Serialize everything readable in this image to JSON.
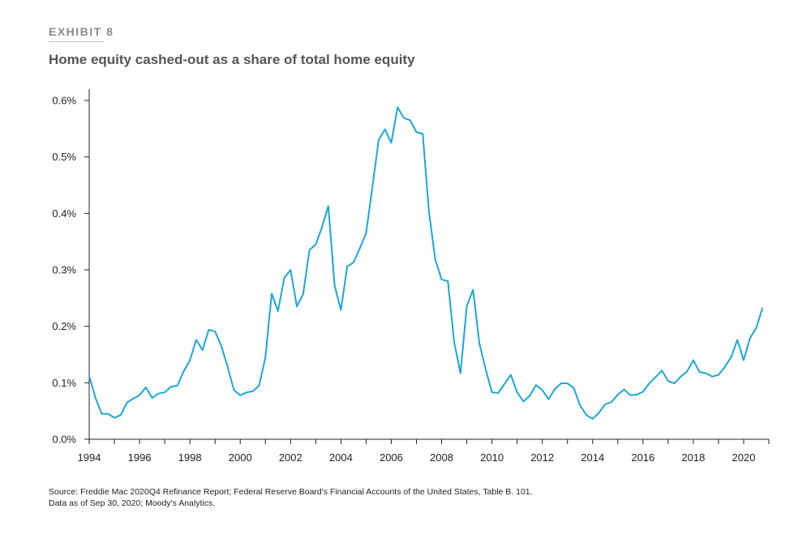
{
  "exhibit_label": "EXHIBIT 8",
  "title": "Home equity cashed-out as a share of total home equity",
  "source": {
    "line1": "Source: Freddie Mac 2020Q4 Refinance Report; Federal Reserve Board's Financial Accounts of the United States, Table B. 101.",
    "line2": "Data as of Sep 30, 2020; Moody's Analytics."
  },
  "chart_data": {
    "type": "line",
    "title": "Home equity cashed-out as a share of total home equity",
    "xlabel": "",
    "ylabel": "",
    "xlim": [
      1994,
      2021
    ],
    "ylim": [
      0,
      0.6
    ],
    "x_ticks": [
      "1994",
      "1996",
      "1998",
      "2000",
      "2002",
      "2004",
      "2006",
      "2008",
      "2010",
      "2012",
      "2014",
      "2016",
      "2018",
      "2020"
    ],
    "y_ticks": [
      "0.0%",
      "0.1%",
      "0.2%",
      "0.3%",
      "0.4%",
      "0.5%",
      "0.6%"
    ],
    "line_color": "#1aa7d9",
    "grid": false,
    "series": [
      {
        "x": [
          1994.0,
          1994.25,
          1994.5,
          1994.75,
          1995.0,
          1995.25,
          1995.5,
          1995.75,
          1996.0,
          1996.25,
          1996.5,
          1996.75,
          1997.0,
          1997.25,
          1997.5,
          1997.75,
          1998.0,
          1998.25,
          1998.5,
          1998.75,
          1999.0,
          1999.25,
          1999.5,
          1999.75,
          2000.0,
          2000.25,
          2000.5,
          2000.75,
          2001.0,
          2001.25,
          2001.5,
          2001.75,
          2002.0,
          2002.25,
          2002.5,
          2002.75,
          2003.0,
          2003.25,
          2003.5,
          2003.75,
          2004.0,
          2004.25,
          2004.5,
          2004.75,
          2005.0,
          2005.25,
          2005.5,
          2005.75,
          2006.0,
          2006.25,
          2006.5,
          2006.75,
          2007.0,
          2007.25,
          2007.5,
          2007.75,
          2008.0,
          2008.25,
          2008.5,
          2008.75,
          2009.0,
          2009.25,
          2009.5,
          2009.75,
          2010.0,
          2010.25,
          2010.5,
          2010.75,
          2011.0,
          2011.25,
          2011.5,
          2011.75,
          2012.0,
          2012.25,
          2012.5,
          2012.75,
          2013.0,
          2013.25,
          2013.5,
          2013.75,
          2014.0,
          2014.25,
          2014.5,
          2014.75,
          2015.0,
          2015.25,
          2015.5,
          2015.75,
          2016.0,
          2016.25,
          2016.5,
          2016.75,
          2017.0,
          2017.25,
          2017.5,
          2017.75,
          2018.0,
          2018.25,
          2018.5,
          2018.75,
          2019.0,
          2019.25,
          2019.5,
          2019.75,
          2020.0,
          2020.25,
          2020.5,
          2020.75
        ],
        "values": [
          0.112,
          0.073,
          0.045,
          0.045,
          0.038,
          0.043,
          0.065,
          0.072,
          0.078,
          0.092,
          0.073,
          0.081,
          0.083,
          0.093,
          0.095,
          0.12,
          0.14,
          0.176,
          0.158,
          0.194,
          0.191,
          0.165,
          0.128,
          0.087,
          0.078,
          0.083,
          0.085,
          0.095,
          0.145,
          0.258,
          0.227,
          0.286,
          0.3,
          0.235,
          0.257,
          0.335,
          0.345,
          0.376,
          0.413,
          0.272,
          0.229,
          0.306,
          0.313,
          0.338,
          0.365,
          0.447,
          0.53,
          0.549,
          0.525,
          0.588,
          0.569,
          0.565,
          0.544,
          0.541,
          0.402,
          0.318,
          0.283,
          0.28,
          0.172,
          0.117,
          0.236,
          0.265,
          0.17,
          0.124,
          0.083,
          0.082,
          0.098,
          0.114,
          0.083,
          0.067,
          0.077,
          0.096,
          0.087,
          0.071,
          0.089,
          0.099,
          0.099,
          0.091,
          0.06,
          0.043,
          0.036,
          0.047,
          0.062,
          0.066,
          0.079,
          0.088,
          0.078,
          0.079,
          0.084,
          0.099,
          0.11,
          0.122,
          0.103,
          0.099,
          0.111,
          0.12,
          0.14,
          0.119,
          0.117,
          0.111,
          0.114,
          0.128,
          0.145,
          0.176,
          0.14,
          0.179,
          0.197,
          0.233
        ]
      }
    ]
  }
}
